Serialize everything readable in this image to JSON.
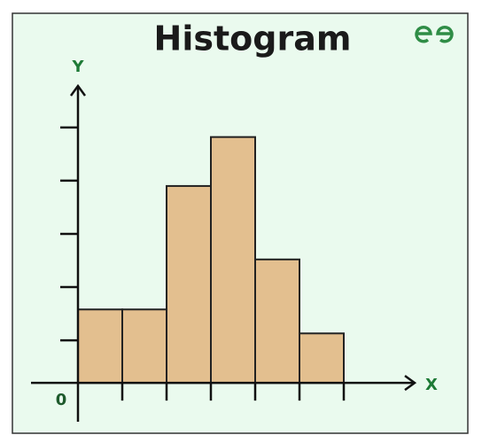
{
  "chart_data": {
    "type": "histogram",
    "title": "Histogram",
    "x_label": "X",
    "y_label": "Y",
    "origin_label": "0",
    "bins": [
      0,
      1,
      2,
      3,
      4,
      5,
      6
    ],
    "values": [
      1.38,
      1.38,
      3.7,
      4.62,
      2.32,
      0.93
    ],
    "color": "#e3bf8f",
    "xlim": [
      -1.06,
      7.6
    ],
    "ylim": [
      -0.73,
      5.58
    ],
    "xticks": [
      1,
      2,
      3,
      4,
      5,
      6
    ],
    "yticks": [
      0.8,
      1.8,
      2.8,
      3.8,
      4.8
    ]
  }
}
